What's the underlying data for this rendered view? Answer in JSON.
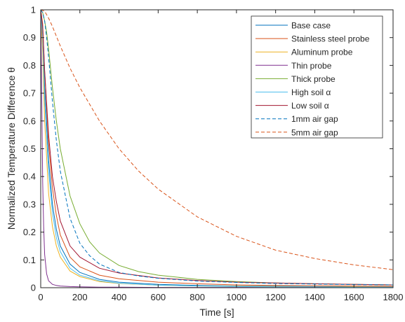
{
  "chart_data": {
    "type": "line",
    "xlabel": "Time [s]",
    "ylabel": "Normalized Temperature Difference θ",
    "xlim": [
      0,
      1800
    ],
    "ylim": [
      0,
      1
    ],
    "x_ticks": [
      "0",
      "200",
      "400",
      "600",
      "800",
      "1000",
      "1200",
      "1400",
      "1600",
      "1800"
    ],
    "y_ticks": [
      "0",
      "0.1",
      "0.2",
      "0.3",
      "0.4",
      "0.5",
      "0.6",
      "0.7",
      "0.8",
      "0.9",
      "1"
    ],
    "grid": false,
    "legend_position": "top-right",
    "series": [
      {
        "name": "Base case",
        "color": "#0072BD",
        "dash": "solid",
        "x": [
          0,
          10,
          20,
          40,
          60,
          80,
          100,
          150,
          200,
          300,
          400,
          600,
          800,
          1000,
          1200,
          1400,
          1600,
          1800
        ],
        "y": [
          1,
          0.92,
          0.72,
          0.46,
          0.3,
          0.21,
          0.15,
          0.085,
          0.055,
          0.03,
          0.02,
          0.012,
          0.008,
          0.006,
          0.005,
          0.004,
          0.003,
          0.003
        ]
      },
      {
        "name": "Stainless steel probe",
        "color": "#D95319",
        "dash": "solid",
        "x": [
          0,
          10,
          20,
          40,
          60,
          80,
          100,
          150,
          200,
          300,
          400,
          600,
          800,
          1000,
          1200,
          1400,
          1600,
          1800
        ],
        "y": [
          1,
          0.95,
          0.78,
          0.52,
          0.36,
          0.26,
          0.19,
          0.11,
          0.075,
          0.045,
          0.032,
          0.02,
          0.014,
          0.01,
          0.008,
          0.007,
          0.006,
          0.005
        ]
      },
      {
        "name": "Aluminum probe",
        "color": "#EDB120",
        "dash": "solid",
        "x": [
          0,
          10,
          20,
          40,
          60,
          80,
          100,
          150,
          200,
          300,
          400,
          600,
          800,
          1000,
          1200,
          1400,
          1600,
          1800
        ],
        "y": [
          1,
          0.85,
          0.6,
          0.34,
          0.22,
          0.15,
          0.11,
          0.06,
          0.04,
          0.022,
          0.015,
          0.009,
          0.006,
          0.005,
          0.004,
          0.003,
          0.003,
          0.002
        ]
      },
      {
        "name": "Thin probe",
        "color": "#7E2F8E",
        "dash": "solid",
        "x": [
          0,
          5,
          10,
          15,
          20,
          30,
          40,
          60,
          80,
          100,
          150,
          200,
          300,
          400,
          600,
          800,
          1000,
          1200,
          1400,
          1600,
          1800
        ],
        "y": [
          1,
          0.7,
          0.38,
          0.22,
          0.12,
          0.05,
          0.025,
          0.012,
          0.008,
          0.006,
          0.004,
          0.003,
          0.002,
          0.002,
          0.001,
          0.001,
          0.001,
          0.001,
          0.001,
          0.001,
          0.001
        ]
      },
      {
        "name": "Thick probe",
        "color": "#77AC30",
        "dash": "solid",
        "x": [
          0,
          10,
          20,
          30,
          40,
          60,
          80,
          100,
          150,
          200,
          250,
          300,
          400,
          500,
          600,
          800,
          1000,
          1200,
          1400,
          1600,
          1800
        ],
        "y": [
          1,
          0.99,
          0.96,
          0.92,
          0.86,
          0.72,
          0.6,
          0.5,
          0.33,
          0.23,
          0.165,
          0.125,
          0.08,
          0.058,
          0.045,
          0.03,
          0.022,
          0.017,
          0.014,
          0.012,
          0.01
        ]
      },
      {
        "name": "High soil α",
        "color": "#4DBEEE",
        "dash": "solid",
        "x": [
          0,
          10,
          20,
          40,
          60,
          80,
          100,
          150,
          200,
          300,
          400,
          600,
          800,
          1000,
          1200,
          1400,
          1600,
          1800
        ],
        "y": [
          1,
          0.9,
          0.68,
          0.42,
          0.27,
          0.18,
          0.13,
          0.07,
          0.045,
          0.025,
          0.016,
          0.009,
          0.006,
          0.004,
          0.003,
          0.003,
          0.002,
          0.002
        ]
      },
      {
        "name": "Low soil α",
        "color": "#A2142F",
        "dash": "solid",
        "x": [
          0,
          10,
          20,
          40,
          60,
          80,
          100,
          150,
          200,
          300,
          400,
          600,
          800,
          1000,
          1200,
          1400,
          1600,
          1800
        ],
        "y": [
          1,
          0.94,
          0.78,
          0.55,
          0.4,
          0.31,
          0.24,
          0.15,
          0.11,
          0.07,
          0.053,
          0.035,
          0.026,
          0.02,
          0.017,
          0.014,
          0.012,
          0.01
        ]
      },
      {
        "name": "1mm air gap",
        "color": "#0072BD",
        "dash": "dashed",
        "x": [
          0,
          10,
          20,
          30,
          40,
          60,
          80,
          100,
          150,
          200,
          250,
          300,
          400,
          500,
          600,
          800,
          1000,
          1200,
          1400,
          1600,
          1800
        ],
        "y": [
          1,
          0.99,
          0.96,
          0.9,
          0.83,
          0.67,
          0.53,
          0.42,
          0.25,
          0.16,
          0.115,
          0.085,
          0.055,
          0.042,
          0.034,
          0.024,
          0.019,
          0.015,
          0.013,
          0.011,
          0.01
        ]
      },
      {
        "name": "5mm air gap",
        "color": "#D95319",
        "dash": "dashed",
        "x": [
          0,
          20,
          40,
          60,
          100,
          150,
          200,
          300,
          400,
          500,
          600,
          800,
          1000,
          1200,
          1400,
          1600,
          1800
        ],
        "y": [
          1,
          0.995,
          0.97,
          0.94,
          0.87,
          0.79,
          0.72,
          0.6,
          0.5,
          0.42,
          0.355,
          0.255,
          0.185,
          0.135,
          0.105,
          0.082,
          0.065
        ]
      }
    ]
  }
}
